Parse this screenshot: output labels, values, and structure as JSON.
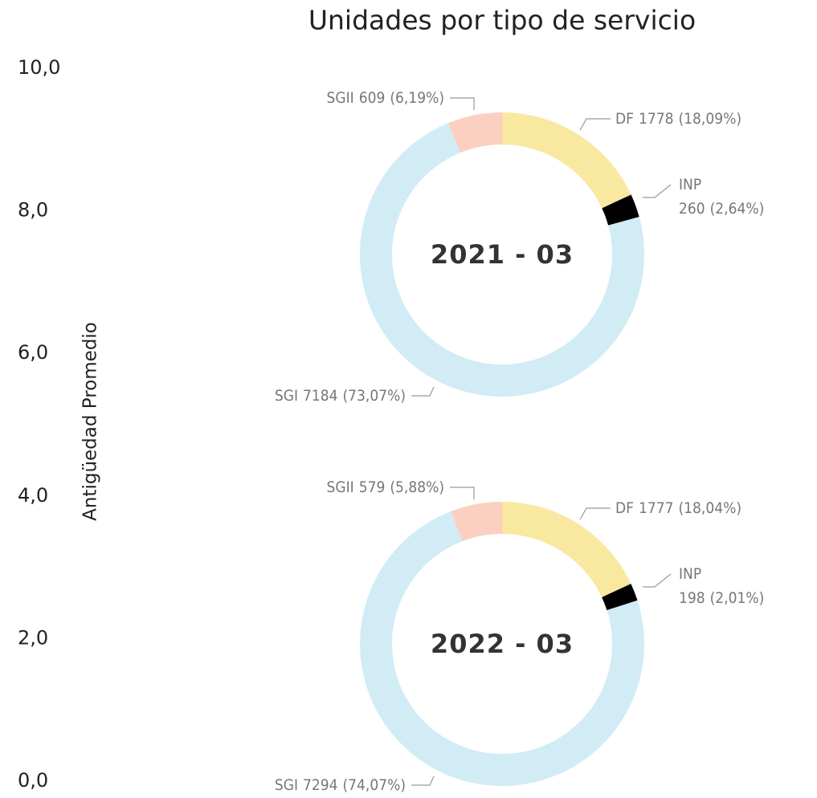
{
  "title": "Unidades por tipo de servicio",
  "axis": {
    "label": "Antigüedad Promedio",
    "ylim": [
      0,
      10
    ],
    "yticks": [
      {
        "value": 0,
        "label": "0,0"
      },
      {
        "value": 2,
        "label": "2,0"
      },
      {
        "value": 4,
        "label": "4,0"
      },
      {
        "value": 6,
        "label": "6,0"
      },
      {
        "value": 8,
        "label": "8,0"
      },
      {
        "value": 10,
        "label": "10,0"
      }
    ]
  },
  "chart_data": [
    {
      "type": "donut",
      "center_label": "2021 - 03",
      "categories": [
        "DF",
        "INP",
        "SGI",
        "SGII"
      ],
      "values": [
        1778,
        260,
        7184,
        609
      ],
      "percent_labels": [
        "(18,09%)",
        "(2,64%)",
        "(73,07%)",
        "(6,19%)"
      ],
      "colors": [
        "#f9e8a0",
        "#000000",
        "#d2ecf6",
        "#fcd0c0"
      ]
    },
    {
      "type": "donut",
      "center_label": "2022 - 03",
      "categories": [
        "DF",
        "INP",
        "SGI",
        "SGII"
      ],
      "values": [
        1777,
        198,
        7294,
        579
      ],
      "percent_labels": [
        "(18,04%)",
        "(2,01%)",
        "(74,07%)",
        "(5,88%)"
      ],
      "colors": [
        "#f9e8a0",
        "#000000",
        "#d2ecf6",
        "#fcd0c0"
      ]
    }
  ]
}
